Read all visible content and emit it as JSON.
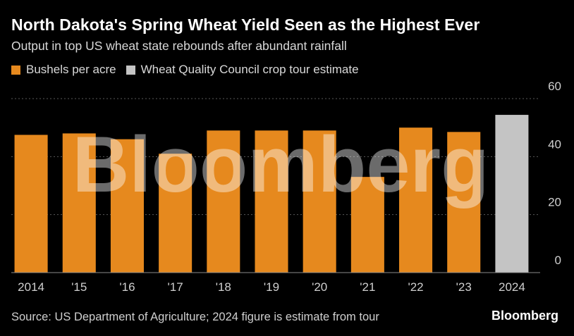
{
  "header": {
    "title": "North Dakota's Spring Wheat Yield Seen as the Highest Ever",
    "subtitle": "Output in top US wheat state rebounds after abundant rainfall"
  },
  "legend": [
    {
      "label": "Bushels per acre",
      "color": "#e6891e"
    },
    {
      "label": "Wheat Quality Council crop tour estimate",
      "color": "#c4c4c4"
    }
  ],
  "footer": {
    "source": "Source: US Department of Agriculture; 2024 figure is estimate from tour",
    "brand": "Bloomberg"
  },
  "watermark": "Bloomberg",
  "chart_data": {
    "type": "bar",
    "title": "North Dakota's Spring Wheat Yield Seen as the Highest Ever",
    "subtitle": "Output in top US wheat state rebounds after abundant rainfall",
    "xlabel": "",
    "ylabel": "Bushels per acre",
    "ylim": [
      0,
      60
    ],
    "yticks": [
      0,
      20,
      40,
      60
    ],
    "y_axis_side": "right",
    "grid": true,
    "categories": [
      "2014",
      "'15",
      "'16",
      "'17",
      "'18",
      "'19",
      "'20",
      "'21",
      "'22",
      "'23",
      "2024"
    ],
    "series": [
      {
        "name": "Bushels per acre",
        "color": "#e6891e",
        "values": [
          47.5,
          48,
          46,
          41,
          49,
          49,
          49,
          33,
          50,
          48.5,
          null
        ]
      },
      {
        "name": "Wheat Quality Council crop tour estimate",
        "color": "#c4c4c4",
        "values": [
          null,
          null,
          null,
          null,
          null,
          null,
          null,
          null,
          null,
          null,
          54.4
        ]
      }
    ]
  }
}
